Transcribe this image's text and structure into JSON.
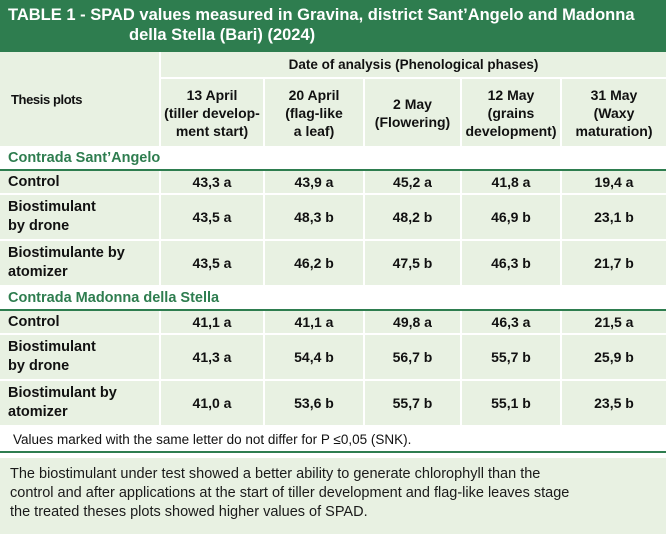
{
  "title": {
    "prefix": "TABLE 1",
    "line1": " - SPAD values measured in Gravina, district Sant’Angelo and Madonna",
    "line2": "della Stella (Bari) (2024)"
  },
  "header": {
    "thesis_label": "Thesis plots",
    "date_label": "Date of analysis (Phenological phases)",
    "columns": [
      [
        "13 April",
        "(tiller develop-",
        "ment start)"
      ],
      [
        "20 April",
        "(flag-like",
        "a leaf)"
      ],
      [
        "2 May",
        "(Flowering)"
      ],
      [
        "12 May",
        "(grains",
        "development)"
      ],
      [
        "31 May",
        "(Waxy",
        "maturation)"
      ]
    ]
  },
  "sections": [
    {
      "name": "Contrada Sant’Angelo",
      "rows": [
        {
          "label": [
            "Control"
          ],
          "values": [
            "43,3 a",
            "43,9 a",
            "45,2 a",
            "41,8 a",
            "19,4 a"
          ]
        },
        {
          "label": [
            "Biostimulant",
            "by drone"
          ],
          "values": [
            "43,5 a",
            "48,3 b",
            "48,2 b",
            "46,9 b",
            "23,1 b"
          ]
        },
        {
          "label": [
            "Biostimulante by",
            "atomizer"
          ],
          "values": [
            "43,5 a",
            "46,2 b",
            "47,5 b",
            "46,3 b",
            "21,7 b"
          ]
        }
      ]
    },
    {
      "name": "Contrada Madonna della Stella",
      "rows": [
        {
          "label": [
            "Control"
          ],
          "values": [
            "41,1 a",
            "41,1 a",
            "49,8 a",
            "46,3 a",
            "21,5 a"
          ]
        },
        {
          "label": [
            "Biostimulant",
            "by drone"
          ],
          "values": [
            "41,3 a",
            "54,4 b",
            "56,7 b",
            "55,7 b",
            "25,9 b"
          ]
        },
        {
          "label": [
            "Biostimulant by",
            "atomizer"
          ],
          "values": [
            "41,0 a",
            "53,6 b",
            "55,7 b",
            "55,1 b",
            "23,5 b"
          ]
        }
      ]
    }
  ],
  "footnote": "Values marked with the same letter do not differ for P ≤0,05 (SNK).",
  "comment": [
    "The biostimulant under test showed a better ability to generate chlorophyll than the",
    "control and after applications at the start of tiller development and flag-like leaves stage",
    "the treated theses plots showed higher values of SPAD."
  ],
  "colors": {
    "accent": "#2e7d4f",
    "row_bg": "#e8f1e2",
    "title_text": "#ffffff"
  }
}
